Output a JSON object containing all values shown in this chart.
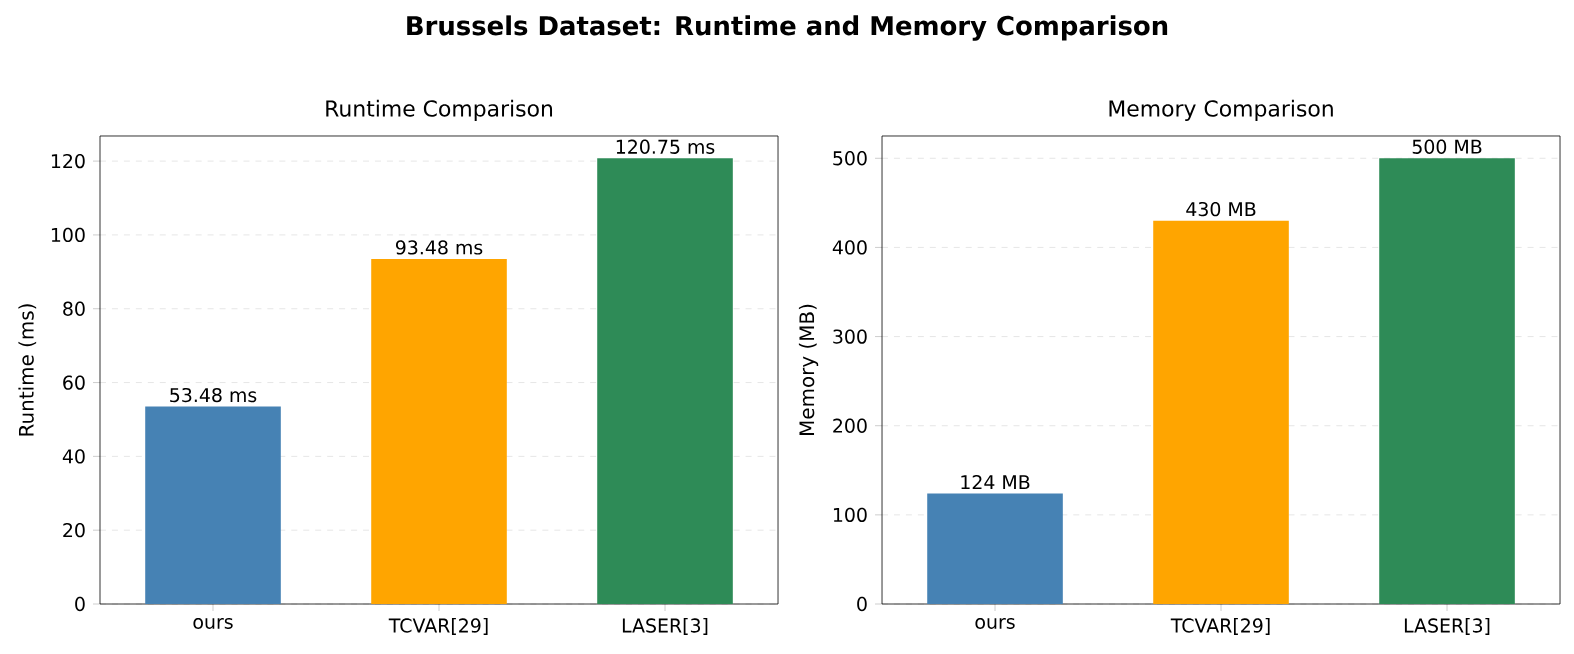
{
  "chart_data": [
    {
      "type": "bar",
      "title": "Runtime Comparison",
      "ylabel": "Runtime (ms)",
      "categories": [
        "ours",
        "TCVAR[29]",
        "LASER[3]"
      ],
      "values": [
        53.48,
        93.48,
        120.75
      ],
      "colors": [
        "#4682b4",
        "#ffa500",
        "#2e8b57"
      ],
      "value_labels": [
        "53.48 ms",
        "93.48 ms",
        "120.75 ms"
      ],
      "ylim": [
        0,
        126.8
      ],
      "yticks": [
        0,
        20,
        40,
        60,
        80,
        100,
        120
      ],
      "grid": "y",
      "annotations": [
        "Brussels Dataset: Runtime and Memory Comparison"
      ]
    },
    {
      "type": "bar",
      "title": "Memory Comparison",
      "ylabel": "Memory (MB)",
      "categories": [
        "ours",
        "TCVAR[29]",
        "LASER[3]"
      ],
      "values": [
        124,
        430,
        500
      ],
      "colors": [
        "#4682b4",
        "#ffa500",
        "#2e8b57"
      ],
      "value_labels": [
        "124 MB",
        "430 MB",
        "500 MB"
      ],
      "ylim": [
        0,
        525
      ],
      "yticks": [
        0,
        100,
        200,
        300,
        400,
        500
      ],
      "grid": "y"
    }
  ]
}
